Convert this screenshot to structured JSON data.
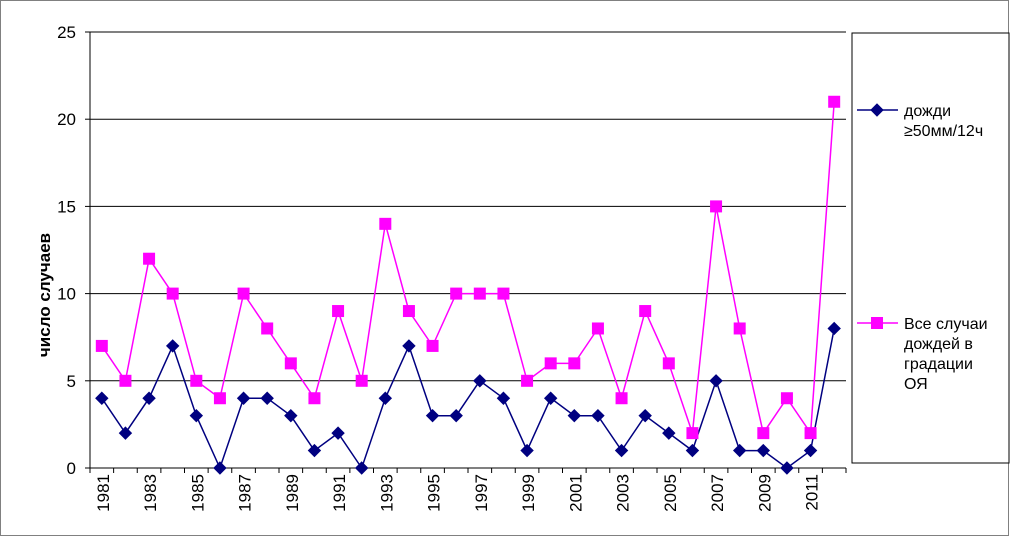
{
  "chart_data": {
    "type": "line",
    "title": "",
    "xlabel": "",
    "ylabel": "число случаев",
    "ylim": [
      0,
      25
    ],
    "yticks": [
      "0",
      "5",
      "10",
      "15",
      "20",
      "25"
    ],
    "x": [
      1981,
      1982,
      1983,
      1984,
      1985,
      1986,
      1987,
      1988,
      1989,
      1990,
      1991,
      1992,
      1993,
      1994,
      1995,
      1996,
      1997,
      1998,
      1999,
      2000,
      2001,
      2002,
      2003,
      2004,
      2005,
      2006,
      2007,
      2008,
      2009,
      2010,
      2011,
      2012
    ],
    "xtick_labels": [
      "1981",
      "1983",
      "1985",
      "1987",
      "1989",
      "1991",
      "1993",
      "1995",
      "1997",
      "1999",
      "2001",
      "2003",
      "2005",
      "2007",
      "2009",
      "2011"
    ],
    "grid": "horizontal",
    "legend_position": "right",
    "series": [
      {
        "name": "дожди ≥50мм/12ч",
        "legend_lines": [
          "дожди",
          "≥50мм/12ч"
        ],
        "color": "#000080",
        "marker": "diamond",
        "values": [
          4,
          2,
          4,
          7,
          3,
          0,
          4,
          4,
          3,
          1,
          2,
          0,
          4,
          7,
          3,
          3,
          5,
          4,
          1,
          4,
          3,
          3,
          1,
          3,
          2,
          1,
          5,
          1,
          1,
          0,
          1,
          8
        ]
      },
      {
        "name": "Все случаи дождей в градации ОЯ",
        "legend_lines": [
          "Все случаи",
          "дождей в",
          "градации",
          "ОЯ"
        ],
        "color": "#ff00ff",
        "marker": "square",
        "values": [
          7,
          5,
          12,
          10,
          5,
          4,
          10,
          8,
          6,
          4,
          9,
          5,
          14,
          9,
          7,
          10,
          10,
          10,
          5,
          6,
          6,
          8,
          4,
          9,
          6,
          2,
          15,
          8,
          2,
          4,
          2,
          21
        ]
      }
    ]
  }
}
